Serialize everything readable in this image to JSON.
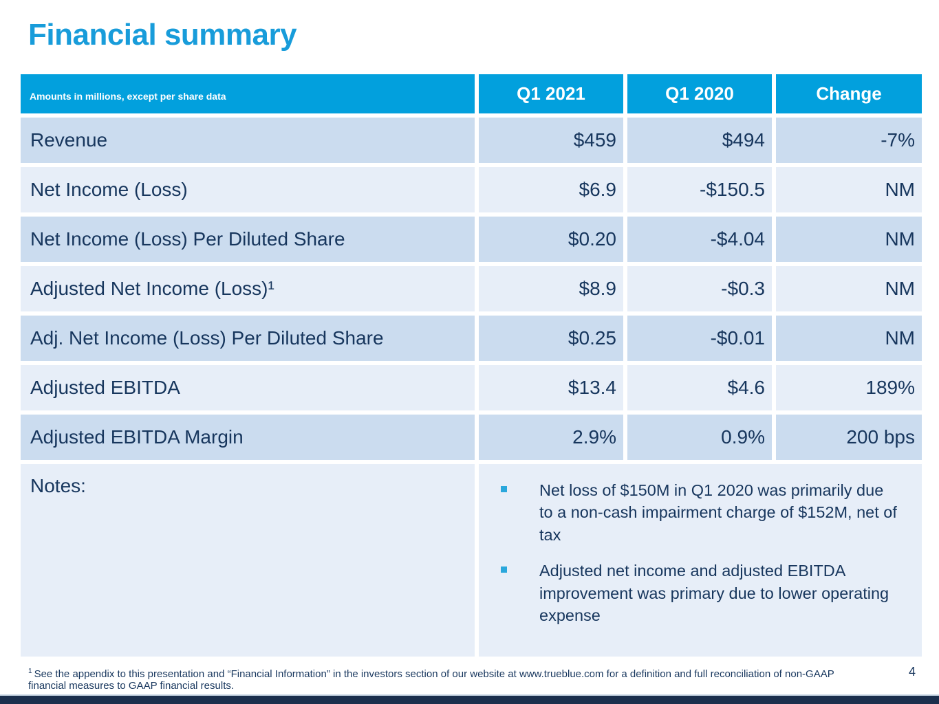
{
  "slide": {
    "title": "Financial summary",
    "page_number": "4",
    "footnote_marker": "1",
    "footnote_text": "See the appendix to this presentation and “Financial Information” in the investors section of our website at www.trueblue.com for a definition and full reconciliation of non-GAAP financial measures to GAAP financial results."
  },
  "table": {
    "header": {
      "caption": "Amounts in millions, except per share data",
      "columns": [
        "Q1 2021",
        "Q1 2020",
        "Change"
      ]
    },
    "rows": [
      {
        "label": "Revenue",
        "values": [
          "$459",
          "$494",
          "-7%"
        ]
      },
      {
        "label": "Net Income (Loss)",
        "values": [
          "$6.9",
          "-$150.5",
          "NM"
        ]
      },
      {
        "label": "Net Income (Loss) Per Diluted Share",
        "values": [
          "$0.20",
          "-$4.04",
          "NM"
        ]
      },
      {
        "label": "Adjusted Net Income (Loss)¹",
        "values": [
          "$8.9",
          "-$0.3",
          "NM"
        ]
      },
      {
        "label": "Adj. Net Income (Loss) Per Diluted Share",
        "values": [
          "$0.25",
          "-$0.01",
          "NM"
        ]
      },
      {
        "label": "Adjusted EBITDA",
        "values": [
          "$13.4",
          "$4.6",
          "189%"
        ]
      },
      {
        "label": "Adjusted EBITDA Margin",
        "values": [
          "2.9%",
          "0.9%",
          "200 bps"
        ]
      }
    ],
    "notes": {
      "label": "Notes:",
      "bullets": [
        "Net loss of $150M in Q1 2020 was primarily due to a non-cash impairment charge of $152M, net of tax",
        "Adjusted net income and adjusted EBITDA improvement was primary due to lower operating expense"
      ]
    }
  },
  "colors": {
    "title_blue": "#189CDA",
    "header_blue": "#02A0DD",
    "row_dark": "#CBDCEF",
    "row_light": "#E7EEF8",
    "text_navy": "#17365D",
    "bullet_cyan": "#2AA7DC",
    "bottom_bar_navy": "#1B2F4D"
  }
}
